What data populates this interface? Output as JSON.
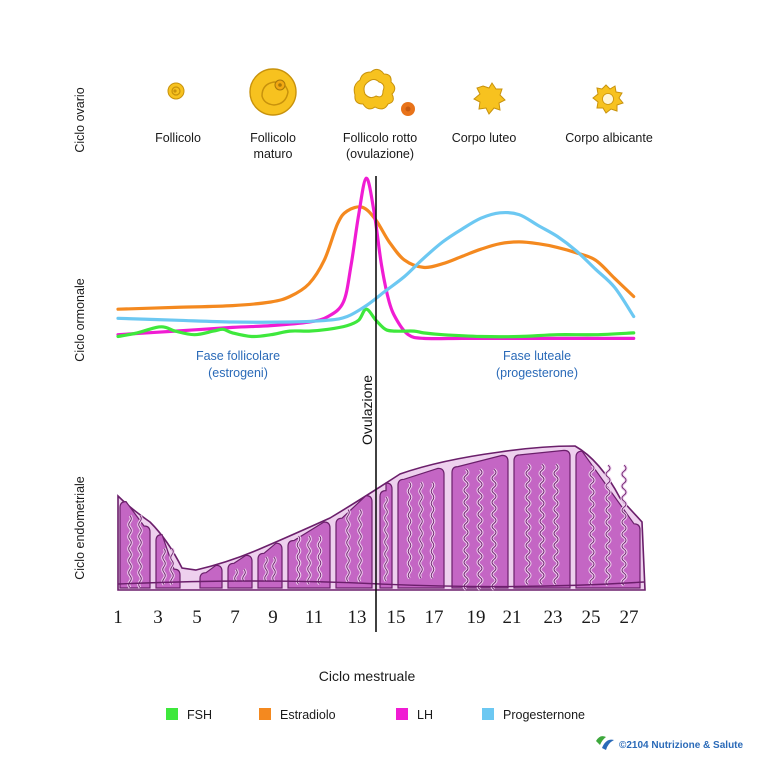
{
  "side_labels": {
    "ovary": "Ciclo ovario",
    "hormonal": "Ciclo ormonale",
    "endometrial": "Ciclo endometriale"
  },
  "ovary_stages": [
    {
      "line1": "Follicolo",
      "line2": ""
    },
    {
      "line1": "Follicolo",
      "line2": "maturo"
    },
    {
      "line1": "Follicolo rotto",
      "line2": "(ovulazione)"
    },
    {
      "line1": "Corpo luteo",
      "line2": ""
    },
    {
      "line1": "Corpo albicante",
      "line2": ""
    }
  ],
  "ovulation_label": "Ovulazione",
  "phases": {
    "follicular": {
      "line1": "Fase follicolare",
      "line2": "(estrogeni)"
    },
    "luteal": {
      "line1": "Fase luteale",
      "line2": "(progesterone)"
    }
  },
  "x_axis": {
    "title": "Ciclo mestruale",
    "ticks": [
      "1",
      "3",
      "5",
      "7",
      "9",
      "11",
      "13",
      "15",
      "17",
      "19",
      "21",
      "23",
      "25",
      "27"
    ]
  },
  "legend": [
    {
      "label": "FSH",
      "color": "#3ee83c"
    },
    {
      "label": "Estradiolo",
      "color": "#f4891f"
    },
    {
      "label": "LH",
      "color": "#f01cd3"
    },
    {
      "label": "Progesternone",
      "color": "#6cc8f2"
    }
  ],
  "credit": "©2104 Nutrizione & Salute",
  "colors": {
    "phase_text": "#2a6ab8",
    "text": "#1a1a1a",
    "follicle_fill": "#f7c21f",
    "follicle_dark": "#c8920c",
    "clot": "#e8731a",
    "endo_fill": "#c466c4",
    "endo_light": "#eed0ee",
    "endo_dark": "#6b1f6b",
    "credit": "#2a6ab8"
  },
  "chart_data": {
    "type": "line",
    "title": "Ciclo ormonale",
    "xlabel": "Ciclo mestruale",
    "ylabel": "",
    "xlim": [
      1,
      28
    ],
    "ylim": [
      0,
      100
    ],
    "series": [
      {
        "name": "Estradiolo",
        "color": "#f4891f",
        "x": [
          1,
          4,
          7,
          9,
          10,
          11,
          11.8,
          12.5,
          13,
          13.8,
          14.5,
          15.2,
          16,
          17,
          18,
          19,
          20,
          21,
          22,
          23,
          24,
          25,
          26,
          27,
          28
        ],
        "y": [
          18,
          19,
          20,
          22,
          25,
          32,
          45,
          65,
          72,
          74,
          67,
          55,
          45,
          41,
          43,
          47,
          51,
          54,
          55,
          54,
          52,
          49,
          45,
          35,
          25
        ]
      },
      {
        "name": "LH",
        "color": "#f01cd3",
        "x": [
          1,
          4,
          7,
          9,
          11,
          12,
          12.8,
          13.2,
          13.6,
          14,
          14.4,
          14.8,
          15.2,
          15.6,
          16.2,
          17,
          19,
          21,
          24,
          28
        ],
        "y": [
          4,
          6,
          8,
          9,
          11,
          14,
          22,
          42,
          70,
          90,
          72,
          42,
          22,
          12,
          4,
          2,
          2,
          2,
          2,
          2
        ]
      },
      {
        "name": "FSH",
        "color": "#3ee83c",
        "x": [
          1,
          2,
          3,
          3.5,
          4,
          5,
          6,
          6.5,
          7,
          8,
          9,
          10,
          11,
          12,
          13,
          13.6,
          14,
          14.5,
          15,
          15.5,
          16.5,
          17,
          18,
          20,
          22,
          24,
          26,
          28
        ],
        "y": [
          3,
          5,
          8,
          8,
          6,
          4,
          6,
          7,
          5,
          3,
          4,
          6,
          6,
          7,
          9,
          12,
          18,
          12,
          7,
          6,
          6,
          5,
          4,
          3,
          3,
          4,
          4,
          5
        ]
      },
      {
        "name": "Progesternone",
        "color": "#6cc8f2",
        "x": [
          1,
          4,
          7,
          10,
          12,
          13,
          14,
          15,
          16,
          17,
          18,
          19,
          20,
          21,
          22,
          23,
          24,
          25,
          26,
          27,
          28
        ],
        "y": [
          13,
          12,
          11,
          11,
          12,
          14,
          20,
          28,
          36,
          46,
          55,
          62,
          68,
          71,
          70,
          64,
          58,
          50,
          40,
          30,
          14
        ]
      }
    ]
  }
}
